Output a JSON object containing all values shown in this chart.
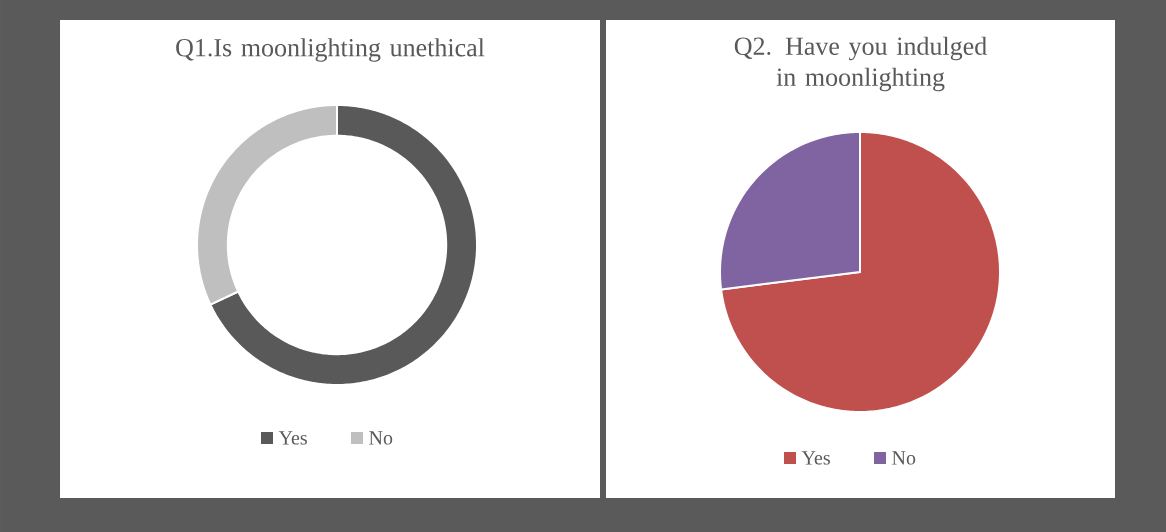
{
  "chart_data": [
    {
      "type": "donut",
      "title": "Q1.Is moonlighting unethical",
      "categories": [
        "Yes",
        "No"
      ],
      "values": [
        68,
        32
      ],
      "colors": [
        "#595959",
        "#bfbfbf"
      ],
      "legend": "bottom"
    },
    {
      "type": "pie",
      "title": "Q2. Have you indulged in moonlighting",
      "categories": [
        "Yes",
        "No"
      ],
      "values": [
        73,
        27
      ],
      "colors": [
        "#c0504d",
        "#8064a2"
      ],
      "legend": "bottom"
    }
  ]
}
